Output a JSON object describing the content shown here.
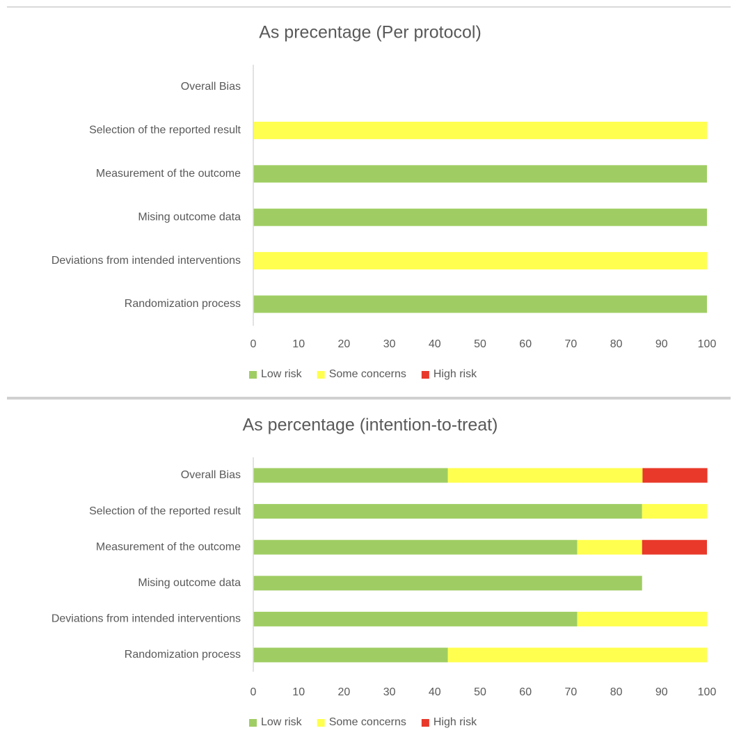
{
  "chart_data": [
    {
      "type": "stacked-bar-horizontal",
      "title": "As precentage (Per protocol)",
      "categories": [
        "Overall Bias",
        "Selection of the reported result",
        "Measurement of the outcome",
        "Mising outcome data",
        "Deviations from intended interventions",
        "Randomization process"
      ],
      "series": [
        {
          "name": "Low risk",
          "color": "#9fcd63",
          "values": [
            0,
            0,
            100,
            100,
            0,
            100
          ]
        },
        {
          "name": "Some concerns",
          "color": "#ffff4f",
          "values": [
            0,
            100,
            0,
            0,
            100,
            0
          ]
        },
        {
          "name": "High risk",
          "color": "#e8392a",
          "values": [
            0,
            0,
            0,
            0,
            0,
            0
          ]
        }
      ],
      "xlim": [
        0,
        100
      ],
      "xticks": [
        0,
        10,
        20,
        30,
        40,
        50,
        60,
        70,
        80,
        90,
        100
      ],
      "grid": false,
      "legend": "bottom"
    },
    {
      "type": "stacked-bar-horizontal",
      "title": "As percentage (intention-to-treat)",
      "categories": [
        "Overall Bias",
        "Selection of the reported result",
        "Measurement of the outcome",
        "Mising outcome data",
        "Deviations from intended interventions",
        "Randomization process"
      ],
      "series": [
        {
          "name": "Low risk",
          "color": "#9fcd63",
          "values": [
            42.9,
            85.7,
            71.4,
            85.7,
            71.4,
            42.9
          ]
        },
        {
          "name": "Some concerns",
          "color": "#ffff4f",
          "values": [
            42.9,
            14.3,
            14.3,
            0,
            28.6,
            57.1
          ]
        },
        {
          "name": "High risk",
          "color": "#e8392a",
          "values": [
            14.3,
            0,
            14.3,
            0,
            0,
            0
          ]
        }
      ],
      "xlim": [
        0,
        100
      ],
      "xticks": [
        0,
        10,
        20,
        30,
        40,
        50,
        60,
        70,
        80,
        90,
        100
      ],
      "grid": false,
      "legend": "bottom"
    }
  ]
}
